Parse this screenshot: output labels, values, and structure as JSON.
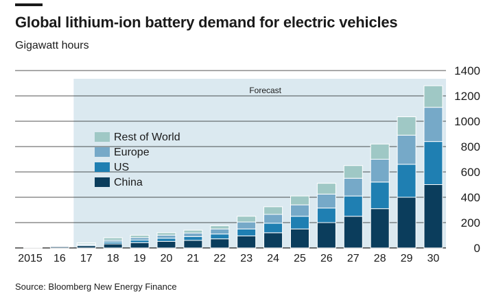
{
  "header": {
    "title": "Global lithium-ion battery demand for electric vehicles",
    "subtitle": "Gigawatt hours"
  },
  "footer": {
    "source": "Source: Bloomberg New Energy Finance"
  },
  "colors": {
    "china": "#0b3d5c",
    "us": "#1f7fb2",
    "europe": "#76a9c8",
    "rest_of_world": "#9fc8c5",
    "forecast_band": "#dbe9f0",
    "gridline": "#1a1a1a"
  },
  "chart_data": {
    "type": "bar",
    "stacked": true,
    "categories": [
      "2015",
      "16",
      "17",
      "18",
      "19",
      "20",
      "21",
      "22",
      "23",
      "24",
      "25",
      "26",
      "27",
      "28",
      "29",
      "30"
    ],
    "series": [
      {
        "name": "China",
        "values": [
          6,
          10,
          18,
          32,
          42,
          52,
          60,
          72,
          95,
          120,
          150,
          200,
          250,
          310,
          400,
          500
        ]
      },
      {
        "name": "US",
        "values": [
          2,
          4,
          7,
          14,
          20,
          25,
          30,
          38,
          55,
          75,
          100,
          115,
          160,
          210,
          260,
          340
        ]
      },
      {
        "name": "Europe",
        "values": [
          2,
          3,
          7,
          14,
          20,
          24,
          28,
          40,
          55,
          70,
          90,
          110,
          140,
          180,
          230,
          270
        ]
      },
      {
        "name": "Rest of World",
        "values": [
          0,
          1,
          8,
          20,
          18,
          19,
          22,
          25,
          45,
          60,
          70,
          85,
          100,
          120,
          145,
          170
        ]
      }
    ],
    "forecast": {
      "label": "Forecast",
      "from": "17",
      "to": "30"
    },
    "yticks": [
      0,
      200,
      400,
      600,
      800,
      1000,
      1200,
      1400
    ],
    "ylim": [
      0,
      1400
    ],
    "grid": true,
    "legend_position": "left-middle",
    "legend_order": [
      "Rest of World",
      "Europe",
      "US",
      "China"
    ],
    "yaxis_side": "right"
  }
}
